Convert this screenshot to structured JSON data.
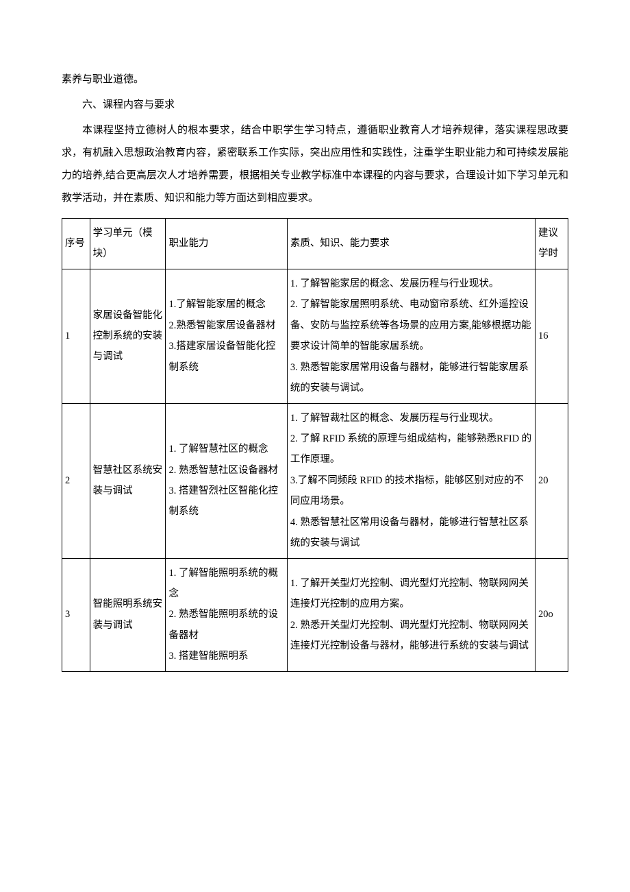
{
  "intro": {
    "line1": "素养与职业道德。",
    "section_title": "六、课程内容与要求",
    "para": "本课程坚持立德树人的根本要求，结合中职学生学习特点，遵循职业教育人才培养规律，落实课程思政要求，有机融入思想政治教育内容，紧密联系工作实际，突出应用性和实践性，注重学生职业能力和可持续发展能力的培养,结合更高层次人才培养需要，根据相关专业教学标准中本课程的内容与要求，合理设计如下学习单元和教学活动，并在素质、知识和能力等方面达到相应要求。"
  },
  "table": {
    "headers": {
      "seq": "序号",
      "unit": "学习单元（模块）",
      "ability": "职业能力",
      "requirement": "素质、知识、能力要求",
      "hours": "建议学时"
    },
    "rows": [
      {
        "seq": "1",
        "unit": "家居设备智能化控制系统的安装与调试",
        "ability": "1.了解智能家居的概念\n2.熟悉智能家居设备器材\n3.搭建家居设备智能化控制系统",
        "requirement": "1. 了解智能家居的概念、发展历程与行业现状。\n2. 了解智能家居照明系统、电动窗帘系统、红外遥控设备、安防与监控系统等各场景的应用方案,能够根据功能要求设计简单的智能家居系统。\n3. 熟悉智能家居常用设备与器材，能够进行智能家居系统的安装与调试。",
        "hours": "16"
      },
      {
        "seq": "2",
        "unit": "智慧社区系统安装与调试",
        "ability": "1. 了解智慧社区的概念\n2. 熟悉智慧社区设备器材\n3. 搭建智烈社区智能化控制系统",
        "requirement": "1. 了解智裁社区的概念、发展历程与行业现状。\n2. 了解 RFID 系统的原理与组成结构，能够熟悉RFID 的工作原理。\n3.了解不同频段 RFID 的技术指标，能够区别对应的不同应用场景。\n4. 熟悉智慧社区常用设备与器材，能够进行智慧社区系统的安装与调试",
        "hours": "20"
      },
      {
        "seq": "3",
        "unit": "智能照明系统安装与调试",
        "ability": "1. 了解智能照明系统的概念\n2. 熟悉智能照明系统的设备器材\n3. 搭建智能照明系",
        "requirement": "1. 了解开关型灯光控制、调光型灯光控制、物联网网关连接灯光控制的应用方案。\n2. 熟悉开关型灯光控制、调光型灯光控制、物联网网关连接灯光控制设备与器材，能够进行系统的安装与调试",
        "hours": "20o"
      }
    ]
  }
}
